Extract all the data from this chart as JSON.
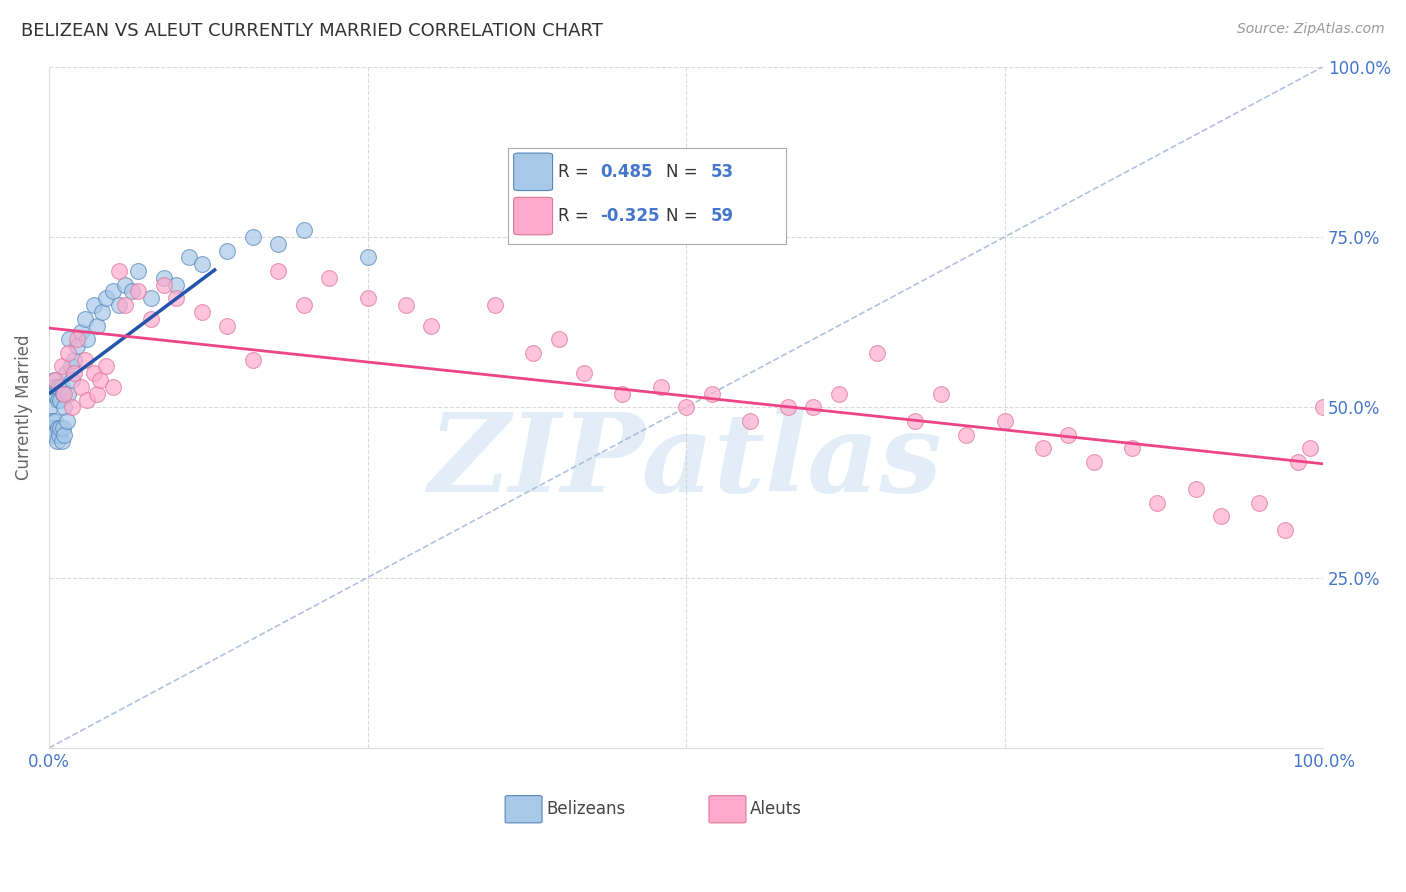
{
  "title": "BELIZEAN VS ALEUT CURRENTLY MARRIED CORRELATION CHART",
  "source_text": "Source: ZipAtlas.com",
  "ylabel": "Currently Married",
  "watermark": "ZIPatlas",
  "R1": 0.485,
  "N1": 53,
  "R2": -0.325,
  "N2": 59,
  "blue_scatter_color": "#a8c8e8",
  "blue_edge_color": "#5588bb",
  "pink_scatter_color": "#ffaacc",
  "pink_edge_color": "#dd7799",
  "blue_line_color": "#2255aa",
  "pink_line_color": "#ee4488",
  "diagonal_color": "#aabbdd",
  "title_color": "#333333",
  "axis_label_color": "#666666",
  "tick_color": "#4477cc",
  "source_color": "#999999",
  "grid_color": "#cccccc",
  "background_color": "#ffffff",
  "legend_text_color": "#333333",
  "legend_value_color": "#4477cc",
  "xlim": [
    0.0,
    1.0
  ],
  "ylim": [
    0.0,
    1.0
  ],
  "bel_x": [
    0.001,
    0.002,
    0.002,
    0.003,
    0.003,
    0.004,
    0.004,
    0.005,
    0.005,
    0.006,
    0.006,
    0.007,
    0.007,
    0.008,
    0.008,
    0.009,
    0.009,
    0.01,
    0.01,
    0.011,
    0.011,
    0.012,
    0.012,
    0.013,
    0.014,
    0.015,
    0.016,
    0.017,
    0.018,
    0.02,
    0.022,
    0.025,
    0.028,
    0.03,
    0.035,
    0.038,
    0.042,
    0.045,
    0.05,
    0.055,
    0.06,
    0.065,
    0.07,
    0.08,
    0.09,
    0.1,
    0.11,
    0.12,
    0.14,
    0.16,
    0.18,
    0.2,
    0.25
  ],
  "bel_y": [
    0.5,
    0.48,
    0.52,
    0.47,
    0.53,
    0.46,
    0.54,
    0.48,
    0.52,
    0.45,
    0.53,
    0.47,
    0.51,
    0.46,
    0.53,
    0.47,
    0.51,
    0.45,
    0.53,
    0.47,
    0.52,
    0.46,
    0.5,
    0.55,
    0.48,
    0.52,
    0.6,
    0.56,
    0.54,
    0.57,
    0.59,
    0.61,
    0.63,
    0.6,
    0.65,
    0.62,
    0.64,
    0.66,
    0.67,
    0.65,
    0.68,
    0.67,
    0.7,
    0.66,
    0.69,
    0.68,
    0.72,
    0.71,
    0.73,
    0.75,
    0.74,
    0.76,
    0.72
  ],
  "al_x": [
    0.005,
    0.01,
    0.012,
    0.015,
    0.018,
    0.02,
    0.022,
    0.025,
    0.028,
    0.03,
    0.035,
    0.038,
    0.04,
    0.045,
    0.05,
    0.055,
    0.06,
    0.07,
    0.08,
    0.09,
    0.1,
    0.12,
    0.14,
    0.16,
    0.18,
    0.2,
    0.22,
    0.25,
    0.28,
    0.3,
    0.35,
    0.38,
    0.4,
    0.42,
    0.45,
    0.48,
    0.5,
    0.52,
    0.55,
    0.58,
    0.6,
    0.62,
    0.65,
    0.68,
    0.7,
    0.72,
    0.75,
    0.78,
    0.8,
    0.82,
    0.85,
    0.87,
    0.9,
    0.92,
    0.95,
    0.97,
    0.98,
    0.99,
    1.0
  ],
  "al_y": [
    0.54,
    0.56,
    0.52,
    0.58,
    0.5,
    0.55,
    0.6,
    0.53,
    0.57,
    0.51,
    0.55,
    0.52,
    0.54,
    0.56,
    0.53,
    0.7,
    0.65,
    0.67,
    0.63,
    0.68,
    0.66,
    0.64,
    0.62,
    0.57,
    0.7,
    0.65,
    0.69,
    0.66,
    0.65,
    0.62,
    0.65,
    0.58,
    0.6,
    0.55,
    0.52,
    0.53,
    0.5,
    0.52,
    0.48,
    0.5,
    0.5,
    0.52,
    0.58,
    0.48,
    0.52,
    0.46,
    0.48,
    0.44,
    0.46,
    0.42,
    0.44,
    0.36,
    0.38,
    0.34,
    0.36,
    0.32,
    0.42,
    0.44,
    0.5
  ]
}
